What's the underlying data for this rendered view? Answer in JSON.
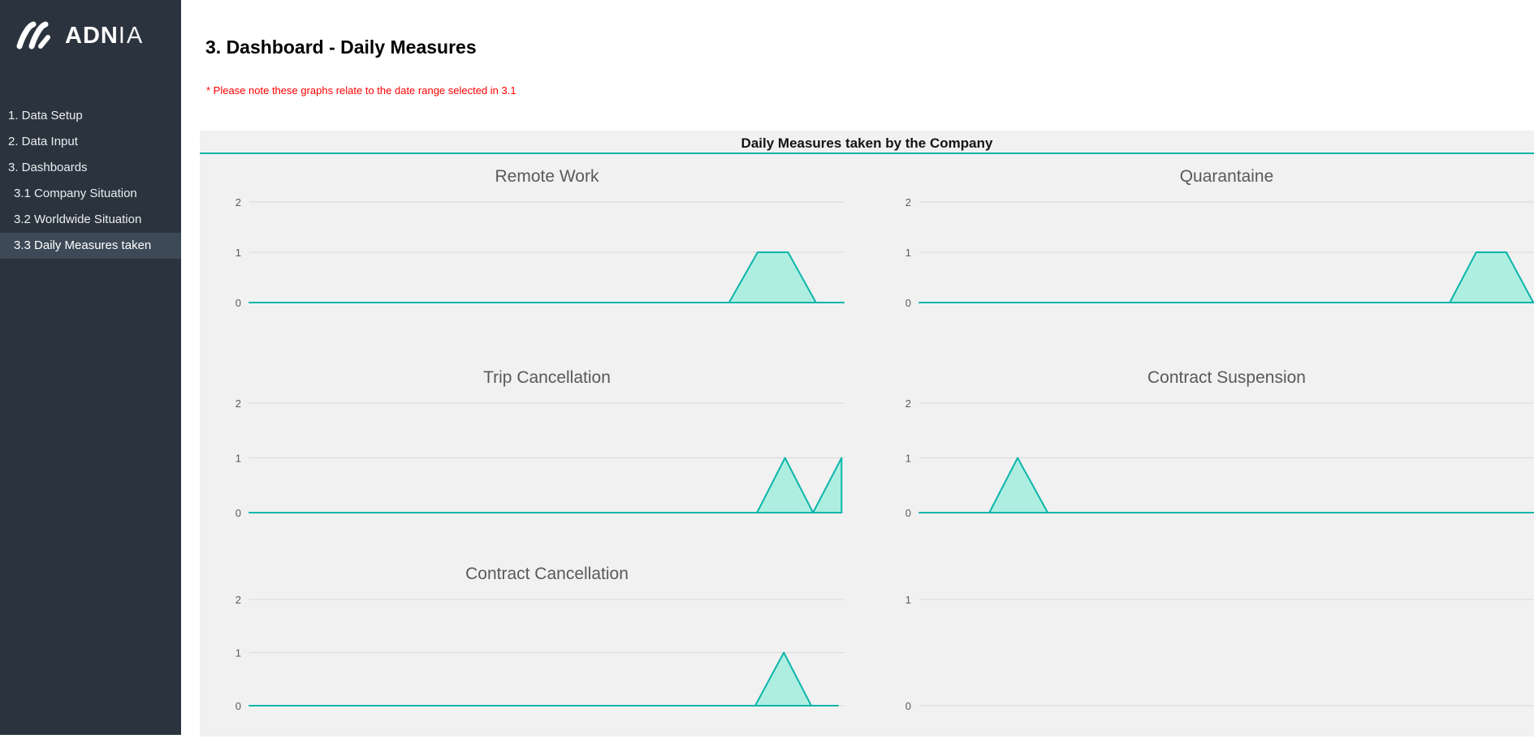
{
  "sidebar": {
    "logo": {
      "bold": "ADN",
      "light": "IA",
      "icon": "adnia-logo-icon"
    },
    "items": [
      {
        "label": "1. Data Setup",
        "level": 1,
        "active": false
      },
      {
        "label": "2. Data Input",
        "level": 1,
        "active": false
      },
      {
        "label": "3. Dashboards",
        "level": 1,
        "active": false
      },
      {
        "label": "3.1 Company Situation",
        "level": 2,
        "active": false
      },
      {
        "label": "3.2 Worldwide Situation",
        "level": 2,
        "active": false
      },
      {
        "label": "3.3 Daily Measures taken",
        "level": 2,
        "active": true
      }
    ]
  },
  "header": {
    "title": "3. Dashboard - Daily Measures",
    "note": "* Please note these graphs relate to the date range selected in 3.1"
  },
  "panel": {
    "title": "Daily Measures taken by the Company"
  },
  "colors": {
    "accent_teal": "#0db5aa",
    "area_fill": "#aeeee1",
    "gridline": "#d9d9d9",
    "axis_text": "#595959",
    "sidebar_bg": "#2b343e",
    "sidebar_active_bg": "#3d4956",
    "panel_bg": "#f1f1f1",
    "note_red": "#ff0000"
  },
  "chart_data": [
    {
      "type": "area",
      "title": "Remote Work",
      "ylim": [
        0,
        2
      ],
      "yticks": [
        0,
        1,
        2
      ],
      "ymax": 2,
      "grid": true,
      "legend": "none",
      "points": [
        [
          0,
          0
        ],
        [
          0.806,
          0
        ],
        [
          0.854,
          1
        ],
        [
          0.905,
          1
        ],
        [
          0.952,
          0
        ],
        [
          1,
          0
        ]
      ]
    },
    {
      "type": "area",
      "title": "Quarantaine",
      "ylim": [
        0,
        2
      ],
      "yticks": [
        0,
        1,
        2
      ],
      "ymax": 2,
      "grid": true,
      "legend": "none",
      "points": [
        [
          0,
          0
        ],
        [
          0.863,
          0
        ],
        [
          0.906,
          1
        ],
        [
          0.955,
          1
        ],
        [
          0.999,
          0
        ]
      ]
    },
    {
      "type": "area",
      "title": "Trip Cancellation",
      "ylim": [
        0,
        2
      ],
      "yticks": [
        0,
        1,
        2
      ],
      "ymax": 2,
      "grid": true,
      "legend": "none",
      "points": [
        [
          0,
          0
        ],
        [
          0.853,
          0
        ],
        [
          0.9,
          1
        ],
        [
          0.947,
          0
        ],
        [
          0.995,
          1
        ]
      ]
    },
    {
      "type": "area",
      "title": "Contract Suspension",
      "ylim": [
        0,
        2
      ],
      "yticks": [
        0,
        1,
        2
      ],
      "ymax": 2,
      "grid": true,
      "legend": "none",
      "points": [
        [
          0,
          0
        ],
        [
          0.114,
          0
        ],
        [
          0.16,
          1
        ],
        [
          0.209,
          0
        ],
        [
          1,
          0
        ]
      ]
    },
    {
      "type": "area",
      "title": "Contract Cancellation",
      "ylim": [
        0,
        2
      ],
      "yticks": [
        0,
        1,
        2
      ],
      "ymax": 2,
      "grid": true,
      "legend": "none",
      "points": [
        [
          0,
          0
        ],
        [
          0.85,
          0
        ],
        [
          0.898,
          1
        ],
        [
          0.944,
          0
        ],
        [
          0.989,
          0
        ]
      ]
    },
    {
      "type": "area",
      "title": "",
      "ylim": [
        0,
        1
      ],
      "yticks": [
        0,
        1
      ],
      "ymax": 1,
      "grid": true,
      "legend": "none",
      "points": []
    }
  ]
}
